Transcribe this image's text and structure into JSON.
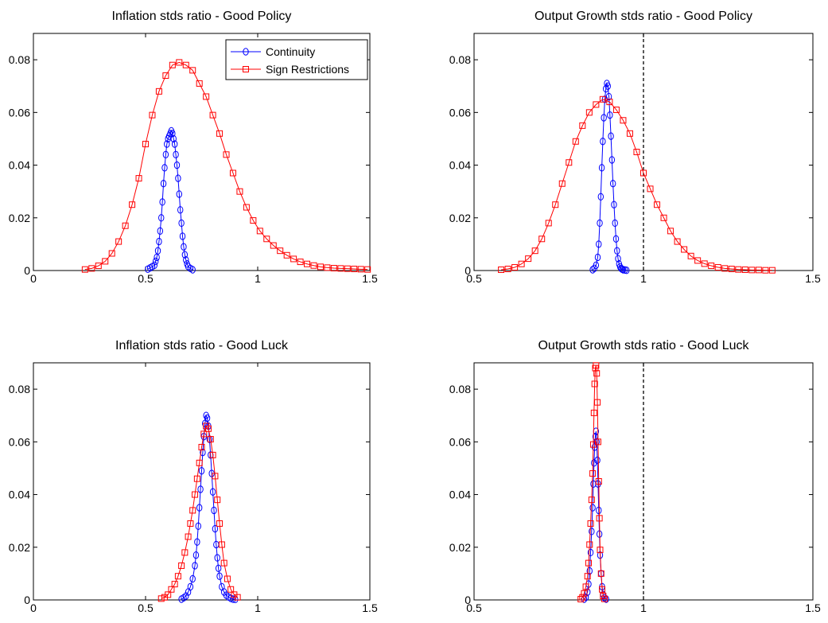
{
  "figure": {
    "background": "#ffffff"
  },
  "chart_data": [
    {
      "type": "line",
      "title": "Inflation stds ratio - Good Policy",
      "xlabel": "",
      "ylabel": "",
      "xlim": [
        0,
        1.5
      ],
      "ylim": [
        0,
        0.09
      ],
      "xticks": [
        0,
        0.5,
        1,
        1.5
      ],
      "xtick_labels": [
        "0",
        "0.5",
        "1",
        "1.5"
      ],
      "yticks": [
        0,
        0.02,
        0.04,
        0.06,
        0.08
      ],
      "ytick_labels": [
        "0",
        "0.02",
        "0.04",
        "0.06",
        "0.08"
      ],
      "reference_line_x": null,
      "legend": {
        "position": "top-right",
        "entries": [
          "Continuity",
          "Sign Restrictions"
        ]
      },
      "series": [
        {
          "name": "Continuity",
          "color": "#0000ff",
          "marker": "circle",
          "x": [
            0.51,
            0.52,
            0.53,
            0.54,
            0.545,
            0.55,
            0.555,
            0.56,
            0.565,
            0.57,
            0.575,
            0.58,
            0.585,
            0.59,
            0.595,
            0.6,
            0.605,
            0.61,
            0.615,
            0.62,
            0.625,
            0.63,
            0.635,
            0.64,
            0.645,
            0.65,
            0.655,
            0.66,
            0.665,
            0.67,
            0.675,
            0.68,
            0.685,
            0.69,
            0.7,
            0.71
          ],
          "y": [
            0.0005,
            0.001,
            0.0015,
            0.002,
            0.0035,
            0.005,
            0.0075,
            0.011,
            0.015,
            0.02,
            0.026,
            0.033,
            0.039,
            0.044,
            0.048,
            0.05,
            0.051,
            0.052,
            0.053,
            0.052,
            0.05,
            0.048,
            0.044,
            0.04,
            0.035,
            0.029,
            0.023,
            0.018,
            0.013,
            0.009,
            0.006,
            0.004,
            0.0025,
            0.0015,
            0.0008,
            0.0003
          ]
        },
        {
          "name": "Sign Restrictions",
          "color": "#ff0000",
          "marker": "square",
          "x": [
            0.23,
            0.26,
            0.29,
            0.32,
            0.35,
            0.38,
            0.41,
            0.44,
            0.47,
            0.5,
            0.53,
            0.56,
            0.59,
            0.62,
            0.65,
            0.68,
            0.71,
            0.74,
            0.77,
            0.8,
            0.83,
            0.86,
            0.89,
            0.92,
            0.95,
            0.98,
            1.01,
            1.04,
            1.07,
            1.1,
            1.13,
            1.16,
            1.19,
            1.22,
            1.25,
            1.28,
            1.31,
            1.34,
            1.37,
            1.4,
            1.43,
            1.46,
            1.49
          ],
          "y": [
            0.0004,
            0.0008,
            0.0018,
            0.0035,
            0.0065,
            0.011,
            0.017,
            0.025,
            0.035,
            0.048,
            0.059,
            0.068,
            0.074,
            0.078,
            0.079,
            0.078,
            0.076,
            0.071,
            0.066,
            0.059,
            0.052,
            0.044,
            0.037,
            0.03,
            0.024,
            0.019,
            0.015,
            0.012,
            0.0095,
            0.0075,
            0.0058,
            0.0044,
            0.0033,
            0.0025,
            0.0019,
            0.0014,
            0.0011,
            0.0009,
            0.0008,
            0.0007,
            0.0006,
            0.0005,
            0.0004
          ]
        }
      ]
    },
    {
      "type": "line",
      "title": "Output Growth stds ratio - Good Policy",
      "xlabel": "",
      "ylabel": "",
      "xlim": [
        0.5,
        1.5
      ],
      "ylim": [
        0,
        0.09
      ],
      "xticks": [
        0.5,
        1,
        1.5
      ],
      "xtick_labels": [
        "0.5",
        "1",
        "1.5"
      ],
      "yticks": [
        0,
        0.02,
        0.04,
        0.06,
        0.08
      ],
      "ytick_labels": [
        "0",
        "0.02",
        "0.04",
        "0.06",
        "0.08"
      ],
      "reference_line_x": 1,
      "legend": null,
      "series": [
        {
          "name": "Continuity",
          "color": "#0000ff",
          "marker": "circle",
          "x": [
            0.85,
            0.855,
            0.86,
            0.865,
            0.868,
            0.871,
            0.874,
            0.877,
            0.88,
            0.883,
            0.886,
            0.889,
            0.892,
            0.895,
            0.898,
            0.901,
            0.904,
            0.907,
            0.91,
            0.913,
            0.916,
            0.919,
            0.922,
            0.925,
            0.928,
            0.931,
            0.934,
            0.937,
            0.94,
            0.945,
            0.95
          ],
          "y": [
            0.0003,
            0.0008,
            0.002,
            0.005,
            0.01,
            0.018,
            0.028,
            0.039,
            0.049,
            0.058,
            0.065,
            0.069,
            0.071,
            0.07,
            0.066,
            0.059,
            0.051,
            0.042,
            0.033,
            0.025,
            0.018,
            0.012,
            0.0075,
            0.0045,
            0.0025,
            0.0014,
            0.0008,
            0.0005,
            0.0003,
            0.0002,
            0.0001
          ]
        },
        {
          "name": "Sign Restrictions",
          "color": "#ff0000",
          "marker": "square",
          "x": [
            0.58,
            0.6,
            0.62,
            0.64,
            0.66,
            0.68,
            0.7,
            0.72,
            0.74,
            0.76,
            0.78,
            0.8,
            0.82,
            0.84,
            0.86,
            0.88,
            0.9,
            0.92,
            0.94,
            0.96,
            0.98,
            1.0,
            1.02,
            1.04,
            1.06,
            1.08,
            1.1,
            1.12,
            1.14,
            1.16,
            1.18,
            1.2,
            1.22,
            1.24,
            1.26,
            1.28,
            1.3,
            1.32,
            1.34,
            1.36,
            1.38
          ],
          "y": [
            0.0003,
            0.0006,
            0.0012,
            0.0025,
            0.0045,
            0.0075,
            0.012,
            0.018,
            0.025,
            0.033,
            0.041,
            0.049,
            0.055,
            0.06,
            0.063,
            0.065,
            0.064,
            0.061,
            0.057,
            0.052,
            0.045,
            0.037,
            0.031,
            0.025,
            0.02,
            0.015,
            0.011,
            0.008,
            0.0055,
            0.0038,
            0.0026,
            0.0018,
            0.0012,
            0.0008,
            0.0006,
            0.0004,
            0.0003,
            0.0002,
            0.0002,
            0.0001,
            0.0001
          ]
        }
      ]
    },
    {
      "type": "line",
      "title": "Inflation stds ratio - Good Luck",
      "xlabel": "",
      "ylabel": "",
      "xlim": [
        0,
        1.5
      ],
      "ylim": [
        0,
        0.09
      ],
      "xticks": [
        0,
        0.5,
        1,
        1.5
      ],
      "xtick_labels": [
        "0",
        "0.5",
        "1",
        "1.5"
      ],
      "yticks": [
        0,
        0.02,
        0.04,
        0.06,
        0.08
      ],
      "ytick_labels": [
        "0",
        "0.02",
        "0.04",
        "0.06",
        "0.08"
      ],
      "reference_line_x": null,
      "legend": null,
      "series": [
        {
          "name": "Continuity",
          "color": "#0000ff",
          "marker": "circle",
          "x": [
            0.66,
            0.67,
            0.68,
            0.69,
            0.7,
            0.71,
            0.72,
            0.725,
            0.73,
            0.735,
            0.74,
            0.745,
            0.75,
            0.755,
            0.76,
            0.765,
            0.77,
            0.775,
            0.78,
            0.785,
            0.79,
            0.795,
            0.8,
            0.805,
            0.81,
            0.815,
            0.82,
            0.825,
            0.83,
            0.84,
            0.85,
            0.86,
            0.87,
            0.88,
            0.89,
            0.9
          ],
          "y": [
            0.0003,
            0.0008,
            0.0015,
            0.003,
            0.005,
            0.008,
            0.013,
            0.017,
            0.022,
            0.028,
            0.035,
            0.042,
            0.049,
            0.056,
            0.062,
            0.067,
            0.07,
            0.069,
            0.066,
            0.061,
            0.055,
            0.048,
            0.041,
            0.034,
            0.027,
            0.021,
            0.016,
            0.012,
            0.009,
            0.005,
            0.003,
            0.0018,
            0.0011,
            0.0006,
            0.0003,
            0.0002
          ]
        },
        {
          "name": "Sign Restrictions",
          "color": "#ff0000",
          "marker": "square",
          "x": [
            0.57,
            0.585,
            0.6,
            0.615,
            0.63,
            0.645,
            0.66,
            0.675,
            0.69,
            0.7,
            0.71,
            0.72,
            0.73,
            0.74,
            0.75,
            0.76,
            0.77,
            0.78,
            0.79,
            0.8,
            0.81,
            0.82,
            0.83,
            0.84,
            0.85,
            0.865,
            0.88,
            0.895,
            0.91
          ],
          "y": [
            0.0005,
            0.001,
            0.002,
            0.004,
            0.006,
            0.009,
            0.013,
            0.018,
            0.024,
            0.029,
            0.034,
            0.04,
            0.046,
            0.052,
            0.058,
            0.063,
            0.066,
            0.065,
            0.061,
            0.055,
            0.047,
            0.038,
            0.029,
            0.021,
            0.014,
            0.008,
            0.004,
            0.002,
            0.001
          ]
        }
      ]
    },
    {
      "type": "line",
      "title": "Output Growth stds ratio - Good Luck",
      "xlabel": "",
      "ylabel": "",
      "xlim": [
        0.5,
        1.5
      ],
      "ylim": [
        0,
        0.09
      ],
      "xticks": [
        0.5,
        1,
        1.5
      ],
      "xtick_labels": [
        "0.5",
        "1",
        "1.5"
      ],
      "yticks": [
        0,
        0.02,
        0.04,
        0.06,
        0.08
      ],
      "ytick_labels": [
        "0",
        "0.02",
        "0.04",
        "0.06",
        "0.08"
      ],
      "reference_line_x": 1,
      "legend": null,
      "series": [
        {
          "name": "Continuity",
          "color": "#0000ff",
          "marker": "circle",
          "x": [
            0.825,
            0.83,
            0.835,
            0.838,
            0.841,
            0.844,
            0.847,
            0.85,
            0.852,
            0.854,
            0.856,
            0.858,
            0.86,
            0.862,
            0.864,
            0.866,
            0.868,
            0.87,
            0.872,
            0.875,
            0.878,
            0.881,
            0.885,
            0.89
          ],
          "y": [
            0.0003,
            0.001,
            0.003,
            0.006,
            0.011,
            0.018,
            0.026,
            0.035,
            0.044,
            0.052,
            0.058,
            0.062,
            0.064,
            0.06,
            0.053,
            0.044,
            0.034,
            0.025,
            0.017,
            0.01,
            0.005,
            0.002,
            0.0008,
            0.0003
          ]
        },
        {
          "name": "Sign Restrictions",
          "color": "#ff0000",
          "marker": "square",
          "x": [
            0.815,
            0.82,
            0.825,
            0.83,
            0.835,
            0.838,
            0.841,
            0.844,
            0.847,
            0.85,
            0.852,
            0.854,
            0.856,
            0.858,
            0.86,
            0.862,
            0.864,
            0.866,
            0.868,
            0.87,
            0.872,
            0.875,
            0.878,
            0.881,
            0.885
          ],
          "y": [
            0.0003,
            0.001,
            0.0025,
            0.005,
            0.009,
            0.014,
            0.021,
            0.029,
            0.038,
            0.048,
            0.059,
            0.071,
            0.082,
            0.088,
            0.089,
            0.086,
            0.075,
            0.06,
            0.045,
            0.031,
            0.019,
            0.01,
            0.004,
            0.0015,
            0.0004
          ]
        }
      ]
    }
  ]
}
